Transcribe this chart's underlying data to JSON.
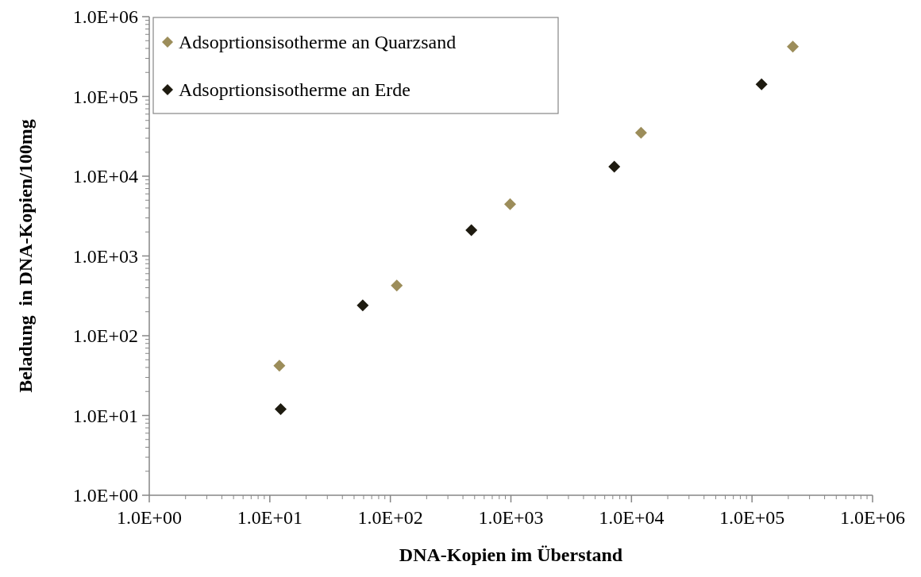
{
  "chart_data": {
    "type": "scatter",
    "xlabel": "DNA-Kopien im Überstand",
    "ylabel": "Beladung  in DNA-Kopien/100mg",
    "log": "xy",
    "marker": "diamond",
    "legend": "top left",
    "grid": false,
    "xlim": [
      1,
      1000000
    ],
    "ylim": [
      1,
      1000000
    ],
    "xticks": [
      {
        "value": 1,
        "label": "1.0E+00"
      },
      {
        "value": 10,
        "label": "1.0E+01"
      },
      {
        "value": 100,
        "label": "1.0E+02"
      },
      {
        "value": 1000,
        "label": "1.0E+03"
      },
      {
        "value": 10000,
        "label": "1.0E+04"
      },
      {
        "value": 100000,
        "label": "1.0E+05"
      },
      {
        "value": 1000000,
        "label": "1.0E+06"
      }
    ],
    "yticks": [
      {
        "value": 1,
        "label": "1.0E+00"
      },
      {
        "value": 10,
        "label": "1.0E+01"
      },
      {
        "value": 100,
        "label": "1.0E+02"
      },
      {
        "value": 1000,
        "label": "1.0E+03"
      },
      {
        "value": 10000,
        "label": "1.0E+04"
      },
      {
        "value": 100000,
        "label": "1.0E+05"
      },
      {
        "value": 1000000,
        "label": "1.0E+06"
      }
    ],
    "series": [
      {
        "name": "Adsoprtionsisotherme an Quarzsand",
        "color": "#9c8d5a",
        "x": [
          12,
          113,
          985,
          12000,
          218000
        ],
        "values": [
          42,
          425,
          4450,
          35000,
          420000
        ]
      },
      {
        "name": "Adsoprtionsisotherme an Erde",
        "color": "#1e1b10",
        "x": [
          12.3,
          59,
          470,
          7200,
          120000
        ],
        "values": [
          12,
          240,
          2100,
          13200,
          142000
        ]
      }
    ]
  }
}
